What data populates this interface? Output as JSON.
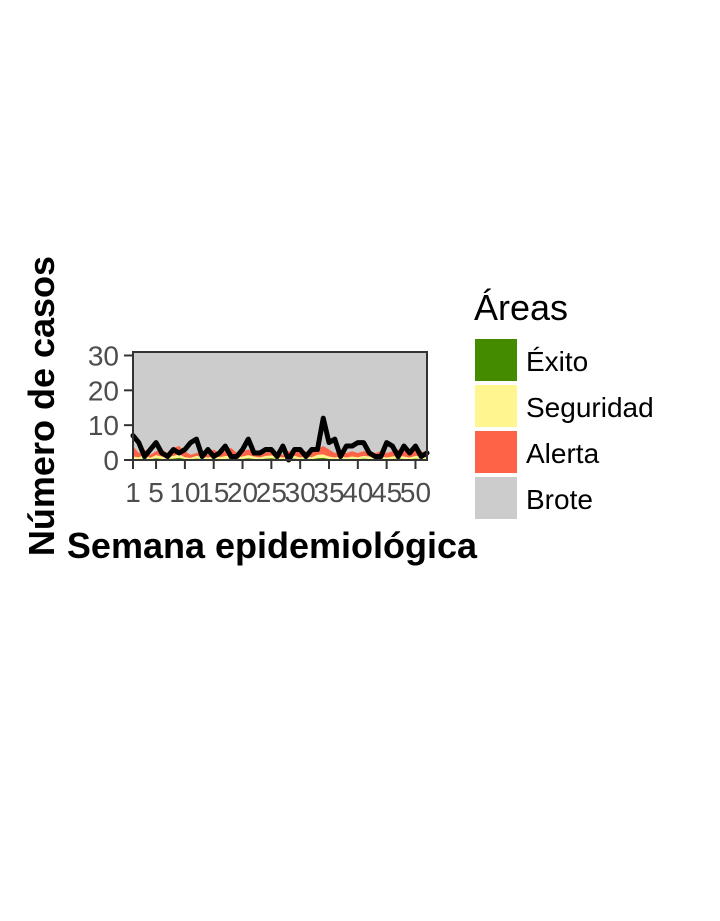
{
  "chart_data": {
    "type": "area",
    "xlabel": "Semana epidemiológica",
    "ylabel": "Número de casos",
    "xlim": [
      1,
      52
    ],
    "ylim": [
      0,
      31
    ],
    "x_ticks": [
      1,
      5,
      10,
      15,
      20,
      25,
      30,
      35,
      40,
      45,
      50
    ],
    "y_ticks": [
      0,
      10,
      20,
      30
    ],
    "grid": false,
    "legend_position": "right",
    "legend": {
      "title": "Áreas",
      "entries": [
        {
          "name": "Éxito",
          "color": "#458b00"
        },
        {
          "name": "Seguridad",
          "color": "#fff68f"
        },
        {
          "name": "Alerta",
          "color": "#ff6347"
        },
        {
          "name": "Brote",
          "color": "#cccccc"
        }
      ]
    },
    "x": [
      1,
      2,
      3,
      4,
      5,
      6,
      7,
      8,
      9,
      10,
      11,
      12,
      13,
      14,
      15,
      16,
      17,
      18,
      19,
      20,
      21,
      22,
      23,
      24,
      25,
      26,
      27,
      28,
      29,
      30,
      31,
      32,
      33,
      34,
      35,
      36,
      37,
      38,
      39,
      40,
      41,
      42,
      43,
      44,
      45,
      46,
      47,
      48,
      49,
      50,
      51,
      52
    ],
    "bands": {
      "exito": [
        0.3,
        0.2,
        0.4,
        0.2,
        0.5,
        0.3,
        0.2,
        0.4,
        0.6,
        0.3,
        0.2,
        0.4,
        0.3,
        0.2,
        0.3,
        0.2,
        0.3,
        0.4,
        0.2,
        0.3,
        0.5,
        0.3,
        0.2,
        0.4,
        0.5,
        0.3,
        0.2,
        0.3,
        0.4,
        0.2,
        0.3,
        0.2,
        0.5,
        0.6,
        0.3,
        0.2,
        0.3,
        0.2,
        0.3,
        0.2,
        0.4,
        0.3,
        0.2,
        0.3,
        0.2,
        0.3,
        0.4,
        0.3,
        0.2,
        0.4,
        0.3,
        0.2
      ],
      "seguridad": [
        1.0,
        0.8,
        1.5,
        0.6,
        1.4,
        1.0,
        0.7,
        1.2,
        1.6,
        0.8,
        0.6,
        1.2,
        0.9,
        0.7,
        1.0,
        0.8,
        1.1,
        1.3,
        0.8,
        1.0,
        1.4,
        1.0,
        0.7,
        1.2,
        1.3,
        1.0,
        0.7,
        1.0,
        1.2,
        0.7,
        1.0,
        0.8,
        1.5,
        1.6,
        1.0,
        0.7,
        1.0,
        0.7,
        1.0,
        0.8,
        1.2,
        1.0,
        0.7,
        1.0,
        0.7,
        1.0,
        1.2,
        1.0,
        0.7,
        1.2,
        1.0,
        0.7
      ],
      "alerta": [
        4.0,
        2.0,
        3.0,
        1.5,
        2.5,
        3.0,
        2.0,
        3.5,
        4.0,
        2.5,
        1.5,
        2.0,
        2.5,
        1.5,
        3.0,
        2.0,
        2.5,
        3.5,
        2.0,
        2.5,
        3.0,
        2.5,
        1.5,
        2.0,
        3.0,
        2.0,
        1.5,
        2.5,
        3.0,
        2.0,
        2.5,
        2.0,
        3.0,
        4.0,
        3.0,
        2.0,
        2.5,
        2.0,
        2.5,
        2.0,
        2.5,
        2.5,
        2.0,
        2.5,
        2.0,
        2.5,
        3.0,
        2.5,
        2.0,
        3.0,
        2.5,
        2.0
      ]
    },
    "series": [
      {
        "values": [
          7,
          5,
          1,
          3,
          5,
          2,
          1,
          3,
          2,
          3,
          5,
          6,
          1,
          3,
          1,
          2,
          4,
          1,
          1,
          3,
          6,
          2,
          2,
          3,
          3,
          1,
          4,
          0,
          3,
          3,
          1,
          3,
          3,
          12,
          5,
          6,
          1,
          4,
          4,
          5,
          5,
          2,
          1,
          1,
          5,
          4,
          1,
          4,
          2,
          4,
          1,
          2
        ]
      }
    ]
  }
}
